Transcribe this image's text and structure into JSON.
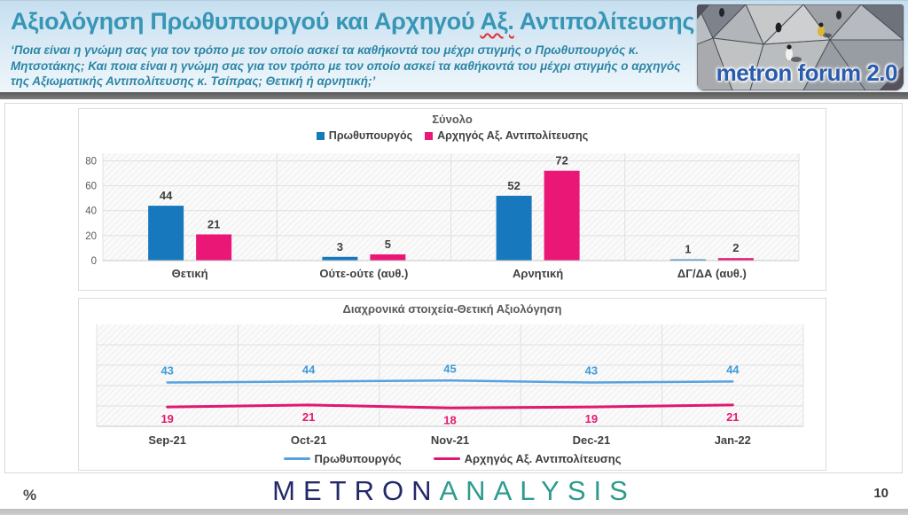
{
  "header": {
    "title_part1": "Αξιολόγηση Πρωθυπουργού και Αρχηγού ",
    "title_misspelled": "Αξ.",
    "title_part2": " Αντιπολίτευσης",
    "subtitle": "‘Ποια είναι η γνώμη σας για τον τρόπο με τον οποίο ασκεί τα καθήκοντά του μέχρι στιγμής ο Πρωθυπουργός κ. Μητσοτάκης; Και ποια είναι η γνώμη σας για τον τρόπο με τον οποίο ασκεί τα καθήκοντά του μέχρι στιγμής ο αρχηγός της Αξιωματικής Αντιπολίτευσης κ. Τσίπρας; Θετική ή αρνητική;’",
    "logo_text": "metron forum 2.0"
  },
  "footer": {
    "percent_label": "%",
    "brand_part1": "METRON",
    "brand_part2": "ANALYSIS",
    "page_number": "10"
  },
  "colors": {
    "title_teal": "#3796b6",
    "subtitle_teal": "#2c85a5",
    "forum_blue": "#2a5bad",
    "brand_navy": "#232a67",
    "brand_teal": "#2d9c8c",
    "grid_light": "#e0e0e0",
    "axis_gray": "#c6c6c6",
    "tick_gray": "#595959",
    "label_dark": "#3f3f3f"
  },
  "chart_data": [
    {
      "type": "bar",
      "title": "Σύνολο",
      "categories": [
        "Θετική",
        "Ούτε-ούτε (αυθ.)",
        "Αρνητική",
        "ΔΓ/ΔΑ (αυθ.)"
      ],
      "series": [
        {
          "name": "Πρωθυπουργός",
          "color": "#1878be",
          "values": [
            44,
            3,
            52,
            1
          ]
        },
        {
          "name": "Αρχηγός Αξ. Αντιπολίτευσης",
          "color": "#ea1777",
          "values": [
            21,
            5,
            72,
            2
          ]
        }
      ],
      "ylim": [
        0,
        86
      ],
      "yticks": [
        0,
        20,
        40,
        60,
        80
      ],
      "legend_position": "top",
      "grid": true
    },
    {
      "type": "line",
      "title": "Διαχρονικά στοιχεία-Θετική Αξιολόγηση",
      "categories": [
        "Sep-21",
        "Oct-21",
        "Nov-21",
        "Dec-21",
        "Jan-22"
      ],
      "series": [
        {
          "name": "Πρωθυπουργός",
          "color": "#56a2e0",
          "label_color": "#3e9adb",
          "values": [
            43,
            44,
            45,
            43,
            44
          ]
        },
        {
          "name": "Αρχηγός Αξ. Αντιπολίτευσης",
          "color": "#e0186f",
          "label_color": "#e5196f",
          "values": [
            19,
            21,
            18,
            19,
            21
          ]
        }
      ],
      "ylim": [
        0,
        100
      ],
      "gridline_step": 20,
      "legend_position": "bottom",
      "grid": true
    }
  ]
}
